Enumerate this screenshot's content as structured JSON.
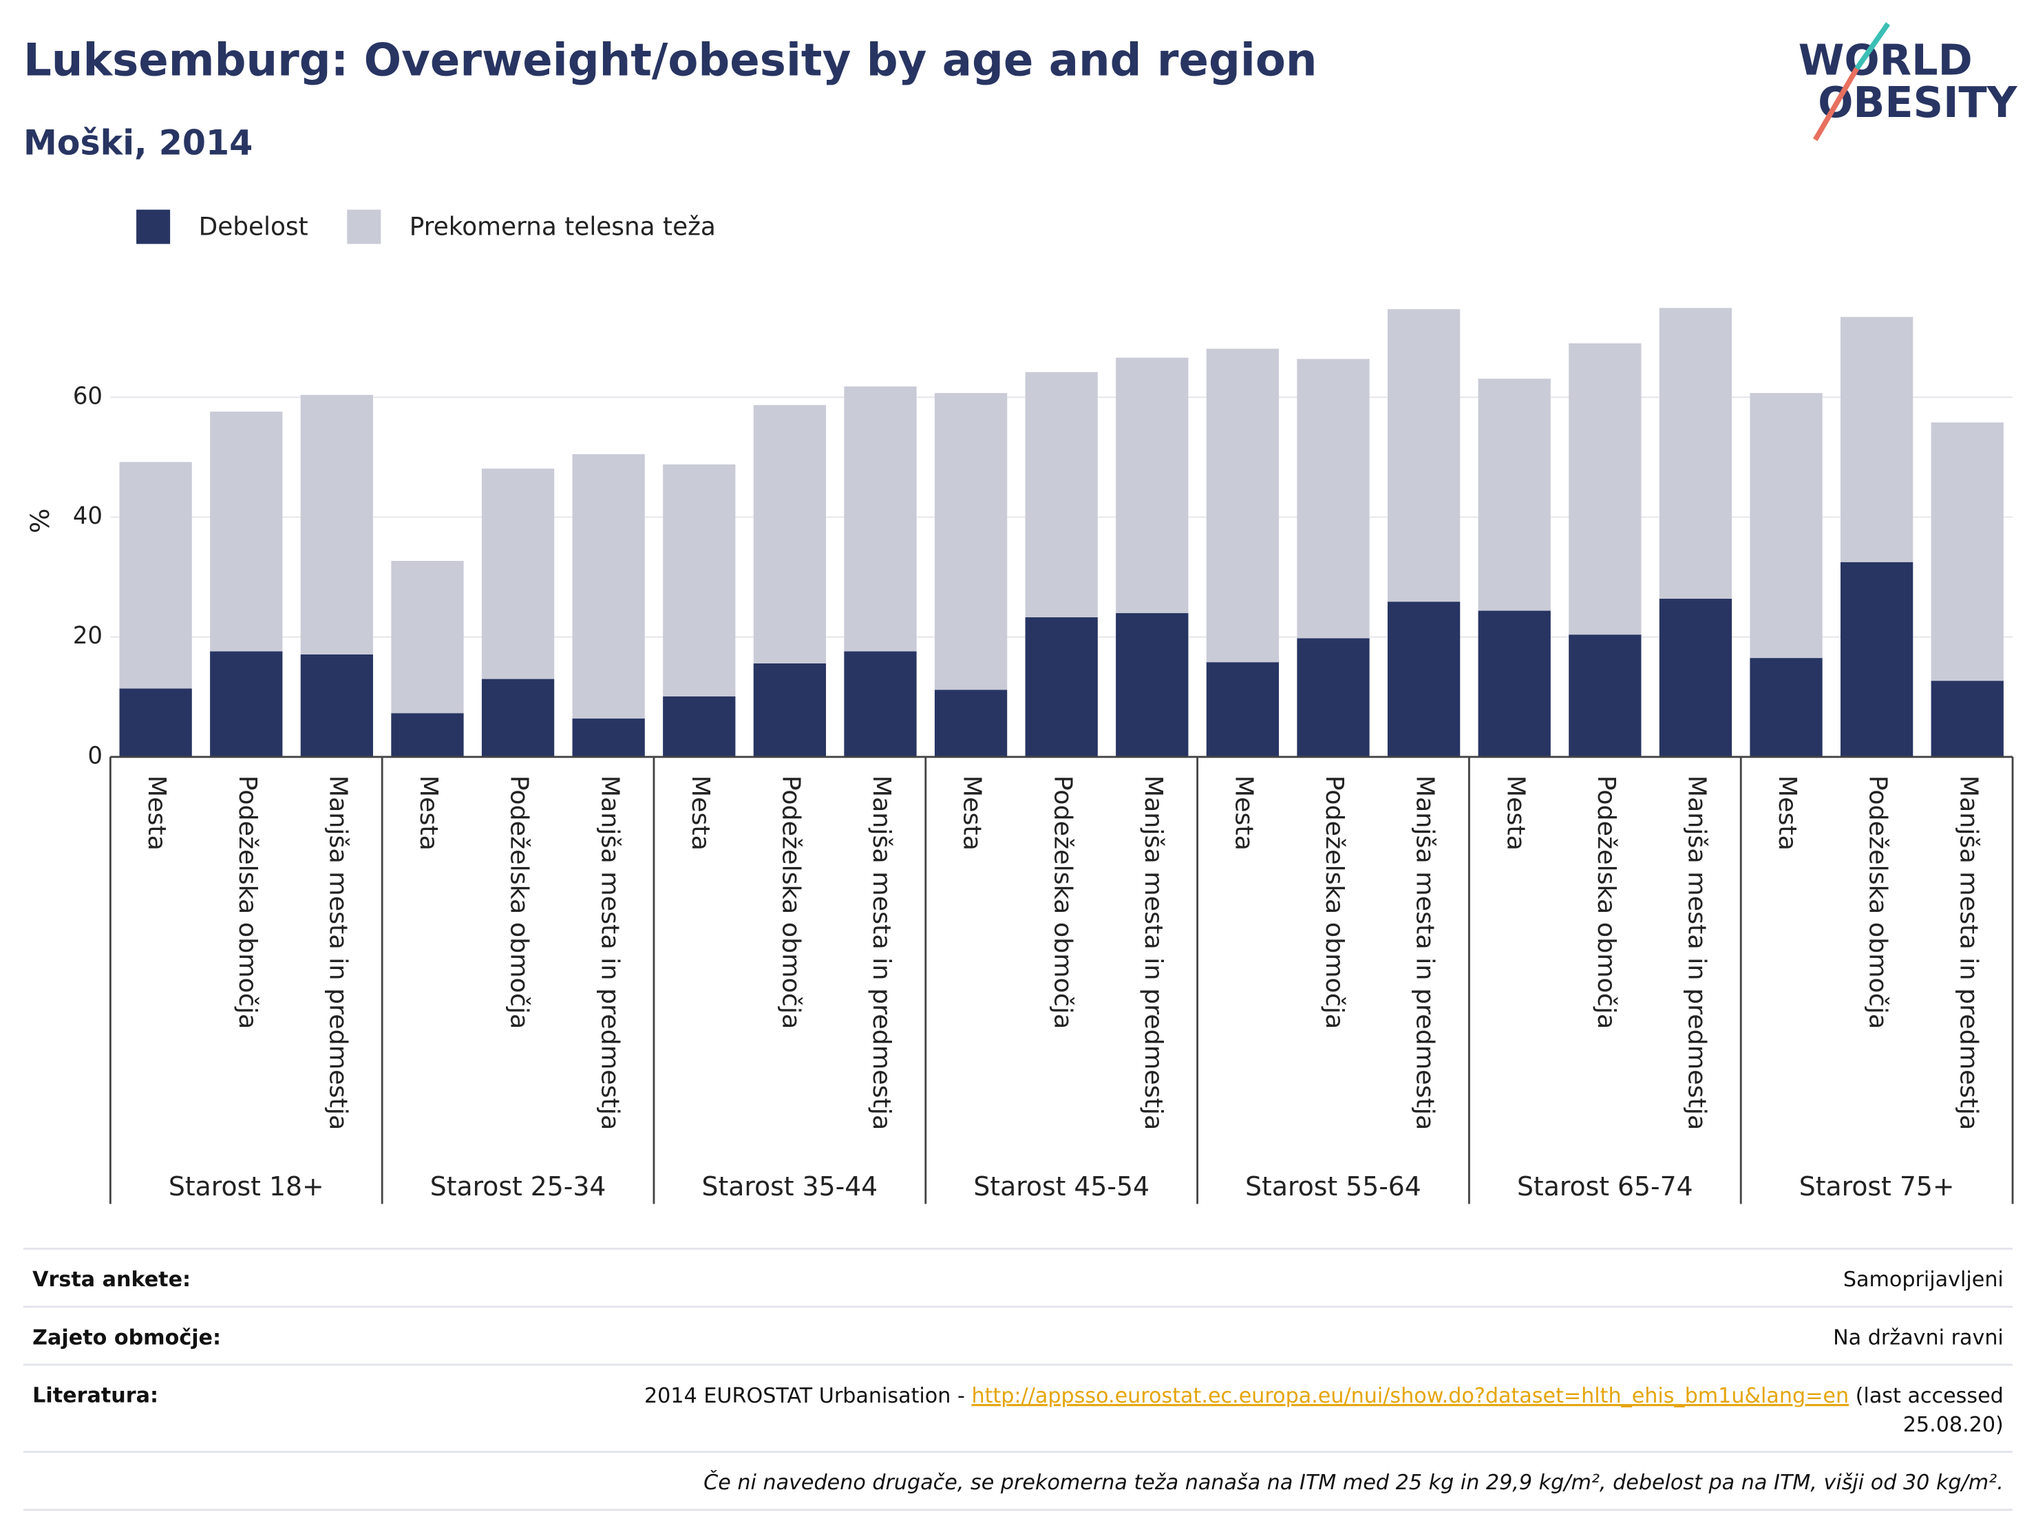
{
  "header": {
    "logo_line1": "WORLD",
    "logo_line2": "OBESITY"
  },
  "chart_data": {
    "type": "stacked_bar",
    "title": "Luksemburg: Overweight/obesity by age and region",
    "subtitle": "Moški, 2014",
    "y_label": "%",
    "categories": [
      "Mesta",
      "Podeželska območja",
      "Manjša mesta in predmestja",
      "Mesta",
      "Podeželska območja",
      "Manjša mesta in predmestja",
      "Mesta",
      "Podeželska območja",
      "Manjša mesta in predmestja",
      "Mesta",
      "Podeželska območja",
      "Manjša mesta in predmestja",
      "Mesta",
      "Podeželska območja",
      "Manjša mesta in predmestja",
      "Mesta",
      "Podeželska območja",
      "Manjša mesta in predmestja",
      "Mesta",
      "Podeželska območja",
      "Manjša mesta in predmestja"
    ],
    "groups": [
      "Starost 18+",
      "Starost 25-34",
      "Starost 35-44",
      "Starost 45-54",
      "Starost 55-64",
      "Starost 65-74",
      "Starost 75+"
    ],
    "series": [
      {
        "name": "Debelost",
        "color": "#283562",
        "values": [
          11.4,
          17.6,
          17.1,
          7.3,
          13.0,
          6.4,
          10.1,
          15.6,
          17.6,
          11.2,
          23.3,
          24.0,
          15.8,
          19.8,
          25.9,
          24.4,
          20.4,
          26.4,
          16.5,
          32.5,
          12.7
        ]
      },
      {
        "name": "Prekomerna telesna teža",
        "color": "#c9cbd7",
        "values": [
          37.8,
          40.0,
          43.3,
          25.4,
          35.1,
          44.1,
          38.7,
          43.1,
          44.2,
          49.5,
          40.9,
          42.6,
          52.3,
          46.6,
          48.8,
          38.7,
          48.6,
          48.5,
          44.2,
          40.9,
          43.1
        ]
      }
    ],
    "ylim": [
      0,
      77
    ],
    "yticks": [
      0,
      20,
      40,
      60
    ],
    "grid": true,
    "legend": "top-left"
  },
  "table": {
    "rows": [
      {
        "label": "Vrsta ankete:",
        "value": "Samoprijavljeni"
      },
      {
        "label": "Zajeto območje:",
        "value": "Na državni ravni"
      }
    ],
    "reference": {
      "label": "Literatura:",
      "prefix": "2014 EUROSTAT Urbanisation - ",
      "link": "http://appsso.eurostat.ec.europa.eu/nui/show.do?dataset=hlth_ehis_bm1u&lang=en",
      "suffix": [
        " (last accessed",
        "25.08.20)"
      ]
    },
    "footnote": "Če ni navedeno drugače, se prekomerna teža nanaša na ITM med 25 kg in 29,9 kg/m², debelost pa na ITM, višji od 30 kg/m²."
  }
}
